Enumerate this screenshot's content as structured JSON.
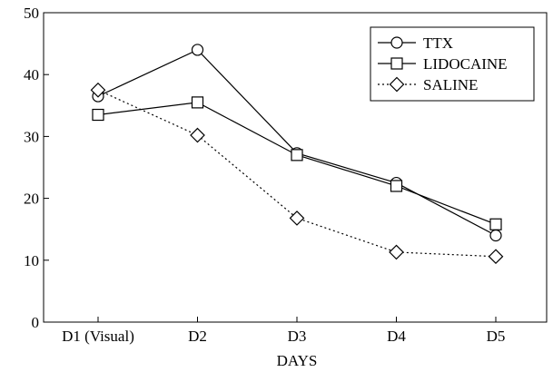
{
  "chart_data": {
    "type": "line",
    "title": "",
    "xlabel": "DAYS",
    "ylabel": "",
    "categories": [
      "D1 (Visual)",
      "D2",
      "D3",
      "D4",
      "D5"
    ],
    "ylim": [
      0,
      50
    ],
    "yticks": [
      0,
      10,
      20,
      30,
      40,
      50
    ],
    "grid": false,
    "legend_position": "top-right",
    "series": [
      {
        "name": "TTX",
        "marker": "circle",
        "line_style": "solid",
        "color": "#000000",
        "values": [
          36.5,
          44,
          27.3,
          22.5,
          14
        ]
      },
      {
        "name": "LIDOCAINE",
        "marker": "square",
        "line_style": "solid",
        "color": "#000000",
        "values": [
          33.5,
          35.5,
          27,
          22,
          15.8
        ]
      },
      {
        "name": "SALINE",
        "marker": "diamond",
        "line_style": "dotted",
        "color": "#000000",
        "values": [
          37.5,
          30.2,
          16.8,
          11.3,
          10.6
        ]
      }
    ]
  }
}
